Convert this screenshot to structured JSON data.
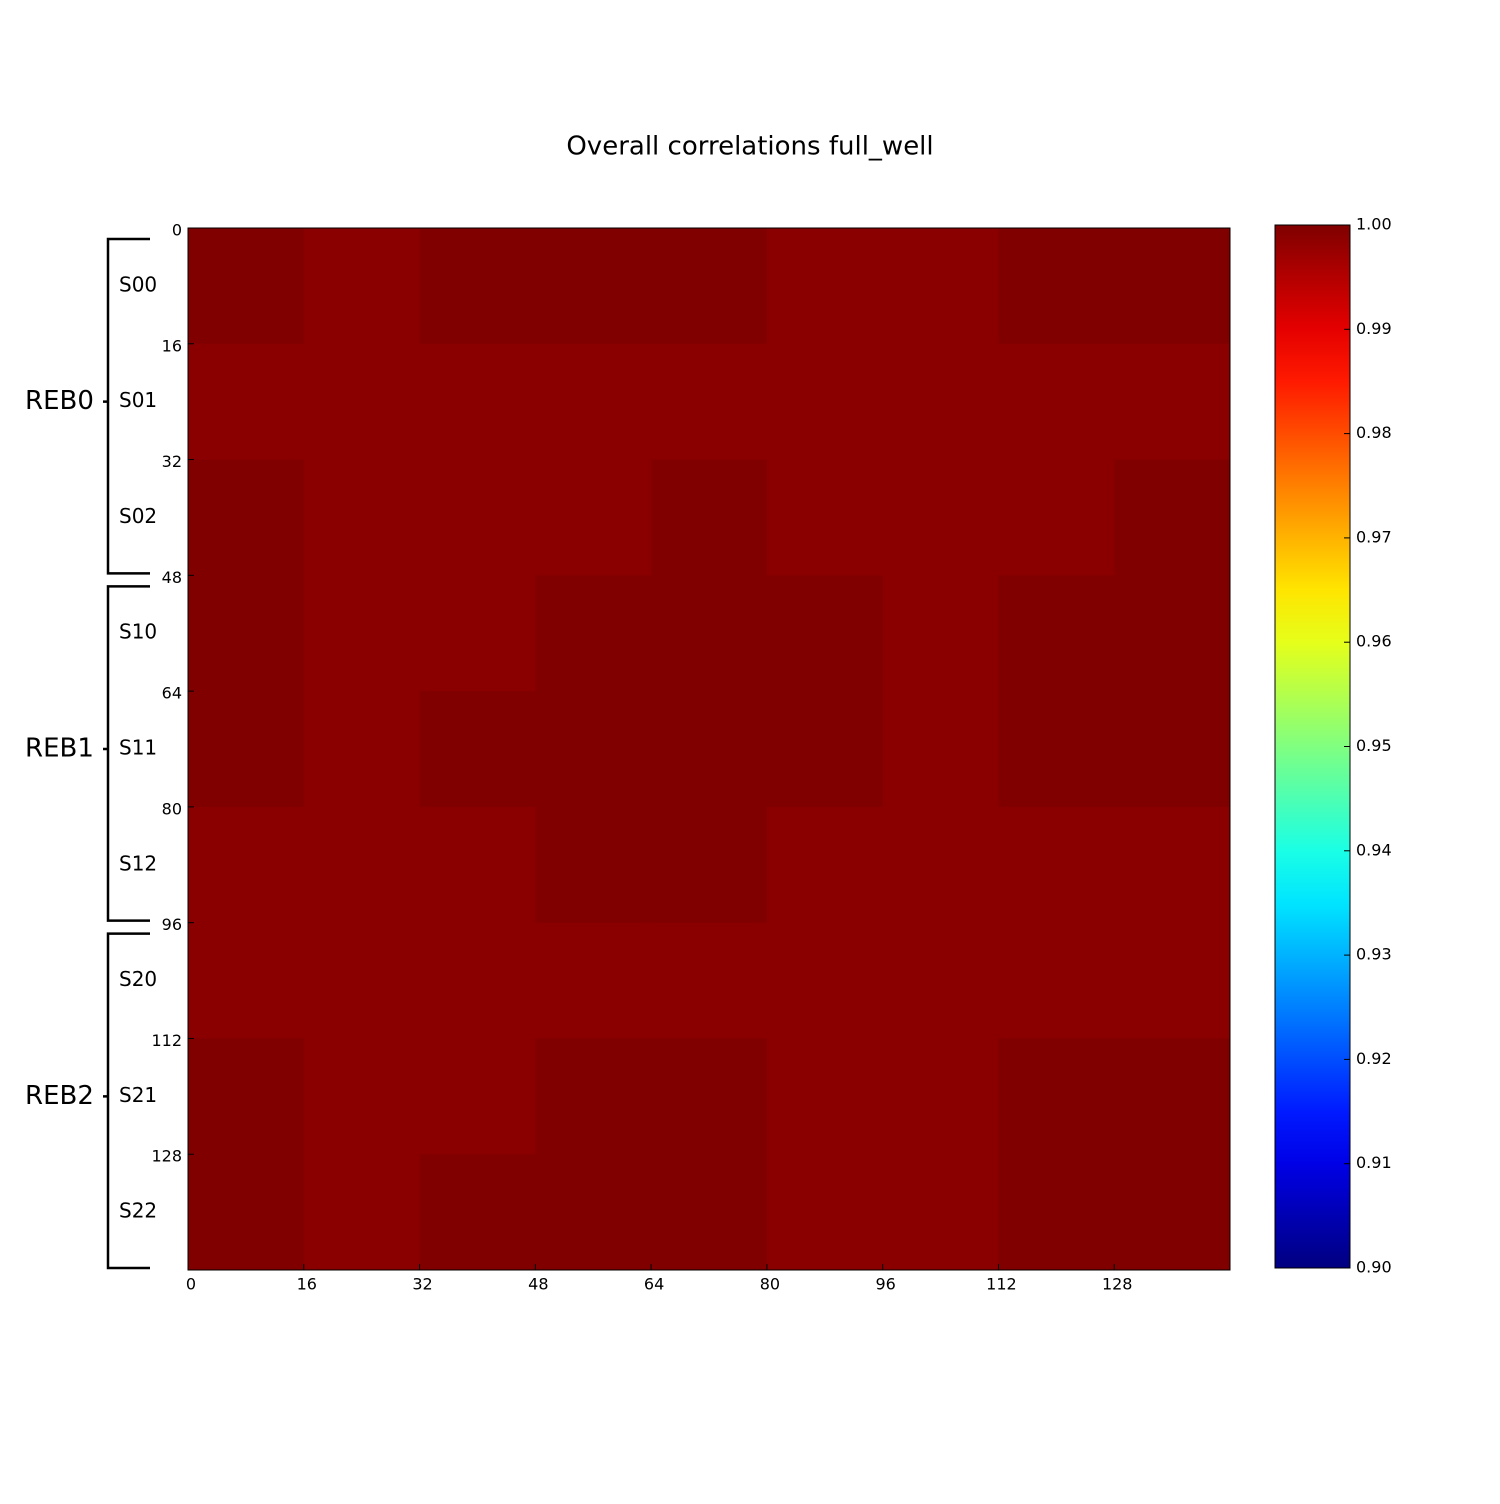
{
  "chart_data": {
    "type": "heatmap",
    "title": "Overall correlations full_well",
    "colormap": "jet",
    "x_bins": [
      0,
      16,
      32,
      48,
      64,
      80,
      96,
      112,
      128,
      144
    ],
    "y_bins": [
      0,
      16,
      32,
      48,
      64,
      80,
      96,
      112,
      128,
      144
    ],
    "values": [
      [
        1,
        0.999,
        1,
        1,
        1,
        0.999,
        0.999,
        1,
        1
      ],
      [
        0.999,
        0.999,
        0.999,
        0.999,
        0.999,
        0.999,
        0.999,
        0.999,
        0.999
      ],
      [
        1,
        0.999,
        0.999,
        0.999,
        1,
        0.999,
        0.999,
        0.999,
        1
      ],
      [
        1,
        0.999,
        0.999,
        1,
        1,
        1,
        0.999,
        1,
        1
      ],
      [
        1,
        0.999,
        1,
        1,
        1,
        1,
        0.999,
        1,
        1
      ],
      [
        0.999,
        0.999,
        0.999,
        1,
        1,
        0.999,
        0.999,
        0.999,
        0.999
      ],
      [
        0.999,
        0.999,
        0.999,
        0.999,
        0.999,
        0.999,
        0.999,
        0.999,
        0.999
      ],
      [
        1,
        0.999,
        0.999,
        1,
        1,
        0.999,
        0.999,
        1,
        1
      ],
      [
        1,
        0.999,
        1,
        1,
        1,
        0.999,
        0.999,
        1,
        1
      ]
    ],
    "xlim": [
      0,
      144
    ],
    "ylim": [
      0,
      144
    ],
    "xticks": [
      0,
      16,
      32,
      48,
      64,
      80,
      96,
      112,
      128
    ],
    "yticks": [
      0,
      16,
      32,
      48,
      64,
      80,
      96,
      112,
      128
    ],
    "clim": [
      0.9,
      1.0
    ],
    "cticks": [
      {
        "value": 0.9,
        "label": "0.90"
      },
      0.91,
      0.92,
      0.93,
      0.94,
      0.95,
      0.96,
      0.97,
      0.98,
      0.99,
      {
        "value": 1.0,
        "label": "1.00"
      }
    ],
    "groups": [
      {
        "name": "REB0",
        "segments": [
          "S00",
          "S01",
          "S02"
        ]
      },
      {
        "name": "REB1",
        "segments": [
          "S10",
          "S11",
          "S12"
        ]
      },
      {
        "name": "REB2",
        "segments": [
          "S20",
          "S21",
          "S22"
        ]
      }
    ]
  }
}
